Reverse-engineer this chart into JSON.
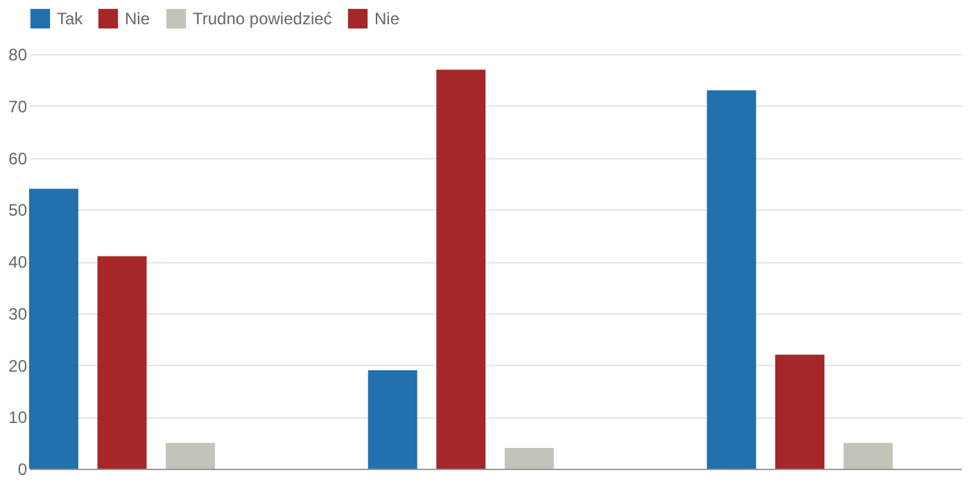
{
  "chart_data": {
    "type": "bar",
    "categories": [
      null,
      null,
      null
    ],
    "series": [
      {
        "name": "Tak",
        "color": "#2270ad",
        "values": [
          54,
          19,
          73
        ]
      },
      {
        "name": "Nie",
        "color": "#a52728",
        "values": [
          41,
          77,
          22
        ]
      },
      {
        "name": "Trudno powiedzieć",
        "color": "#c4c3b9",
        "values": [
          5,
          4,
          5
        ]
      },
      {
        "name": "Nie",
        "color": "#a52728",
        "values": [
          null,
          null,
          null
        ]
      }
    ],
    "ylim": [
      0,
      80
    ],
    "yticks": [
      0,
      10,
      20,
      30,
      40,
      50,
      60,
      70,
      80
    ],
    "grid": "y",
    "legend": "top"
  }
}
